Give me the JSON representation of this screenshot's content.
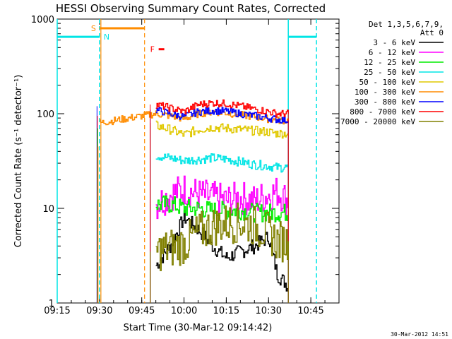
{
  "chart_data": {
    "type": "line",
    "title": "HESSI Observing Summary Count Rates, Corrected",
    "xlabel": "Start Time (30-Mar-12 09:14:42)",
    "ylabel": "Corrected Count Rate (s⁻¹ detector⁻¹)",
    "yscale": "log",
    "ylim": [
      1,
      1000
    ],
    "xlim": [
      "09:15",
      "10:55"
    ],
    "x_ticks": [
      "09:15",
      "09:30",
      "09:45",
      "10:00",
      "10:15",
      "10:30",
      "10:45"
    ],
    "y_ticks": [
      "1",
      "10",
      "100",
      "1000"
    ],
    "legend_header": [
      "Det 1,3,5,6,7,9,",
      "Att 0"
    ],
    "legend_position": "top-right",
    "series": [
      {
        "name": "3 - 6 keV",
        "color": "#000000",
        "x": [
          "09:50",
          "09:55",
          "10:00",
          "10:05",
          "10:10",
          "10:15",
          "10:20",
          "10:25",
          "10:30",
          "10:33",
          "10:37"
        ],
        "values": [
          2.5,
          4,
          8,
          6,
          4,
          3,
          3.5,
          4,
          5,
          2,
          1.5
        ]
      },
      {
        "name": "6 - 12 keV",
        "color": "#ff00ff",
        "x": [
          "09:50",
          "09:55",
          "10:00",
          "10:05",
          "10:10",
          "10:15",
          "10:20",
          "10:25",
          "10:30",
          "10:33",
          "10:37"
        ],
        "values": [
          11,
          14,
          16,
          14,
          13,
          12,
          13,
          12,
          14,
          15,
          12
        ]
      },
      {
        "name": "12 - 25 keV",
        "color": "#00ee00",
        "x": [
          "09:50",
          "09:55",
          "10:00",
          "10:05",
          "10:10",
          "10:15",
          "10:20",
          "10:25",
          "10:30",
          "10:33",
          "10:37"
        ],
        "values": [
          11,
          11,
          10,
          10,
          9.5,
          9.5,
          9.5,
          9,
          9,
          9,
          9
        ]
      },
      {
        "name": "25 - 50 keV",
        "color": "#00e5e5",
        "x": [
          "09:50",
          "09:55",
          "10:00",
          "10:05",
          "10:10",
          "10:15",
          "10:20",
          "10:25",
          "10:30",
          "10:33",
          "10:37"
        ],
        "values": [
          36,
          34,
          32,
          33,
          34,
          33,
          31,
          29,
          28,
          27,
          27
        ]
      },
      {
        "name": "50 - 100 keV",
        "color": "#e0c800",
        "x": [
          "09:50",
          "09:55",
          "10:00",
          "10:05",
          "10:10",
          "10:15",
          "10:20",
          "10:25",
          "10:30",
          "10:33",
          "10:37"
        ],
        "values": [
          75,
          68,
          60,
          68,
          72,
          70,
          68,
          66,
          64,
          62,
          62
        ]
      },
      {
        "name": "100 - 300 keV",
        "color": "#ff8c00",
        "x": [
          "09:30",
          "09:50",
          "09:55",
          "10:00",
          "10:05",
          "10:10",
          "10:15",
          "10:20",
          "10:25",
          "10:30",
          "10:33",
          "10:37"
        ],
        "values": [
          80,
          100,
          95,
          88,
          100,
          105,
          102,
          97,
          93,
          88,
          85,
          85
        ]
      },
      {
        "name": "300 - 800 keV",
        "color": "#0000ff",
        "x": [
          "09:50",
          "09:55",
          "10:00",
          "10:05",
          "10:10",
          "10:15",
          "10:20",
          "10:25",
          "10:30",
          "10:33",
          "10:37"
        ],
        "values": [
          110,
          100,
          93,
          105,
          108,
          106,
          100,
          95,
          90,
          87,
          85
        ]
      },
      {
        "name": "800 - 7000 keV",
        "color": "#ff0000",
        "x": [
          "09:50",
          "09:55",
          "10:00",
          "10:05",
          "10:10",
          "10:15",
          "10:20",
          "10:25",
          "10:30",
          "10:33",
          "10:37"
        ],
        "values": [
          125,
          115,
          105,
          125,
          130,
          128,
          120,
          112,
          105,
          100,
          100
        ]
      },
      {
        "name": "7000 - 20000 keV",
        "color": "#808000",
        "x": [
          "09:50",
          "09:55",
          "10:00",
          "10:05",
          "10:10",
          "10:15",
          "10:20",
          "10:25",
          "10:30",
          "10:33",
          "10:37"
        ],
        "values": [
          3.5,
          3.8,
          4.2,
          5.5,
          6.5,
          7,
          7,
          6.5,
          5.5,
          4.5,
          4.5
        ]
      }
    ],
    "annotations": [
      {
        "label": "S",
        "color": "#ff8c00",
        "x_start": "09:30",
        "x_end": "09:46",
        "y": 800
      },
      {
        "label": "N",
        "color": "#00e5e5",
        "x": "09:31",
        "y": 650
      },
      {
        "label": "F",
        "color": "#ff0000",
        "x_start": "09:51",
        "x_end": "09:53",
        "y": 480
      }
    ],
    "night_intervals": [
      [
        "09:15",
        "09:30"
      ],
      [
        "10:37",
        "10:47"
      ]
    ],
    "saa_intervals": [
      [
        "09:30",
        "09:46"
      ]
    ],
    "timestamp": "30-Mar-2012 14:51"
  }
}
